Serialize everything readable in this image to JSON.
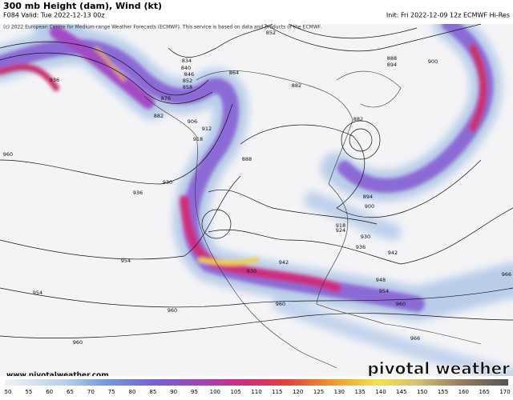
{
  "header": {
    "title": "300 mb Height (dam), Wind (kt)",
    "valid": "F084 Valid: Tue 2022-12-13 00z",
    "init": "Init: Fri 2022-12-09 12z ECMWF Hi-Res",
    "copyright": "(c) 2022 European Centre for Medium-range Weather Forecasts (ECMWF). This service is based on data and products of the ECMWF."
  },
  "contour_labels": [
    "936",
    "960",
    "930",
    "936",
    "954",
    "954",
    "960",
    "960",
    "834",
    "840",
    "846",
    "852",
    "858",
    "876",
    "882",
    "906",
    "912",
    "918",
    "864",
    "852",
    "888",
    "882",
    "888",
    "894",
    "900",
    "882",
    "894",
    "900",
    "918",
    "924",
    "930",
    "936",
    "942",
    "948",
    "954",
    "960",
    "966",
    "960",
    "942",
    "930",
    "966"
  ],
  "colorbar": {
    "ticks": [
      50,
      55,
      60,
      65,
      70,
      75,
      80,
      85,
      90,
      95,
      100,
      105,
      110,
      115,
      120,
      125,
      130,
      135,
      140,
      145,
      150,
      155,
      160,
      165,
      170
    ]
  },
  "footer": {
    "url": "www.pivotalweather.com",
    "brand": "pivotal weather"
  }
}
